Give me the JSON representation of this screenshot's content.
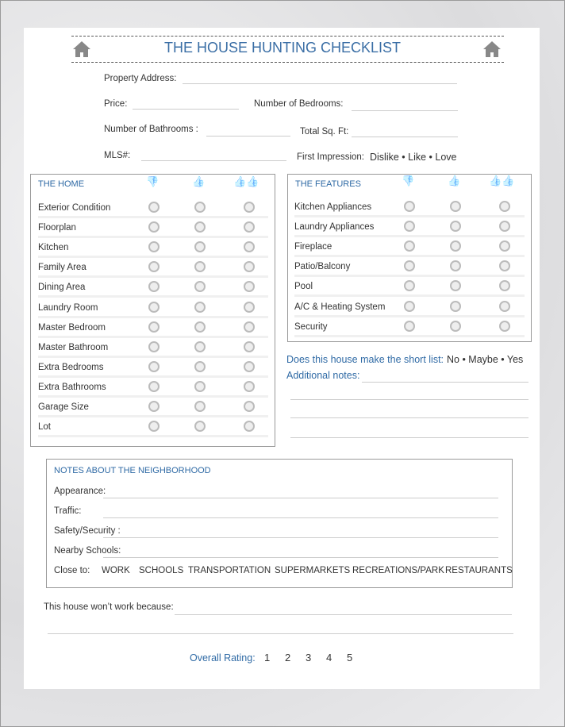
{
  "title": "THE HOUSE HUNTING CHECKLIST",
  "fields": {
    "address": "Property Address:",
    "price": "Price:",
    "bedrooms": "Number of Bedrooms:",
    "bathrooms": "Number of Bathrooms :",
    "sqft": "Total Sq. Ft:",
    "mls": "MLS#:",
    "impression": "First Impression:",
    "impression_options": "Dislike • Like • Love"
  },
  "home": {
    "title": "THE HOME",
    "items": [
      "Exterior Condition",
      "Floorplan",
      "Kitchen",
      "Family Area",
      "Dining Area",
      "Laundry Room",
      "Master Bedroom",
      "Master Bathroom",
      "Extra Bedrooms",
      "Extra Bathrooms",
      "Garage Size",
      "Lot"
    ]
  },
  "features": {
    "title": "THE FEATURES",
    "items": [
      "Kitchen Appliances",
      "Laundry Appliances",
      "Fireplace",
      "Patio/Balcony",
      "Pool",
      "A/C & Heating System",
      "Security"
    ]
  },
  "rating_icons": [
    "thumbs-down-icon",
    "thumbs-up-icon",
    "double-thumbs-up-icon"
  ],
  "shortlist": {
    "label": "Does this house make the short list:",
    "options": "No • Maybe • Yes"
  },
  "notes_label": "Additional notes:",
  "neighborhood": {
    "title": "NOTES ABOUT THE NEIGHBORHOOD",
    "fields": [
      "Appearance:",
      "Traffic:",
      "Safety/Security :",
      "Nearby Schools:"
    ],
    "close_to_label": "Close to:",
    "close_to": [
      "WORK",
      "SCHOOLS",
      "TRANSPORTATION",
      "SUPERMARKETS",
      "RECREATIONS/PARK",
      "RESTAURANTS"
    ]
  },
  "wont_work": "This house won’t work because:",
  "overall": {
    "label": "Overall Rating:",
    "values": [
      "1",
      "2",
      "3",
      "4",
      "5"
    ]
  },
  "colors": {
    "accent": "#2f6aa5",
    "icon": "#4a7cc6"
  }
}
